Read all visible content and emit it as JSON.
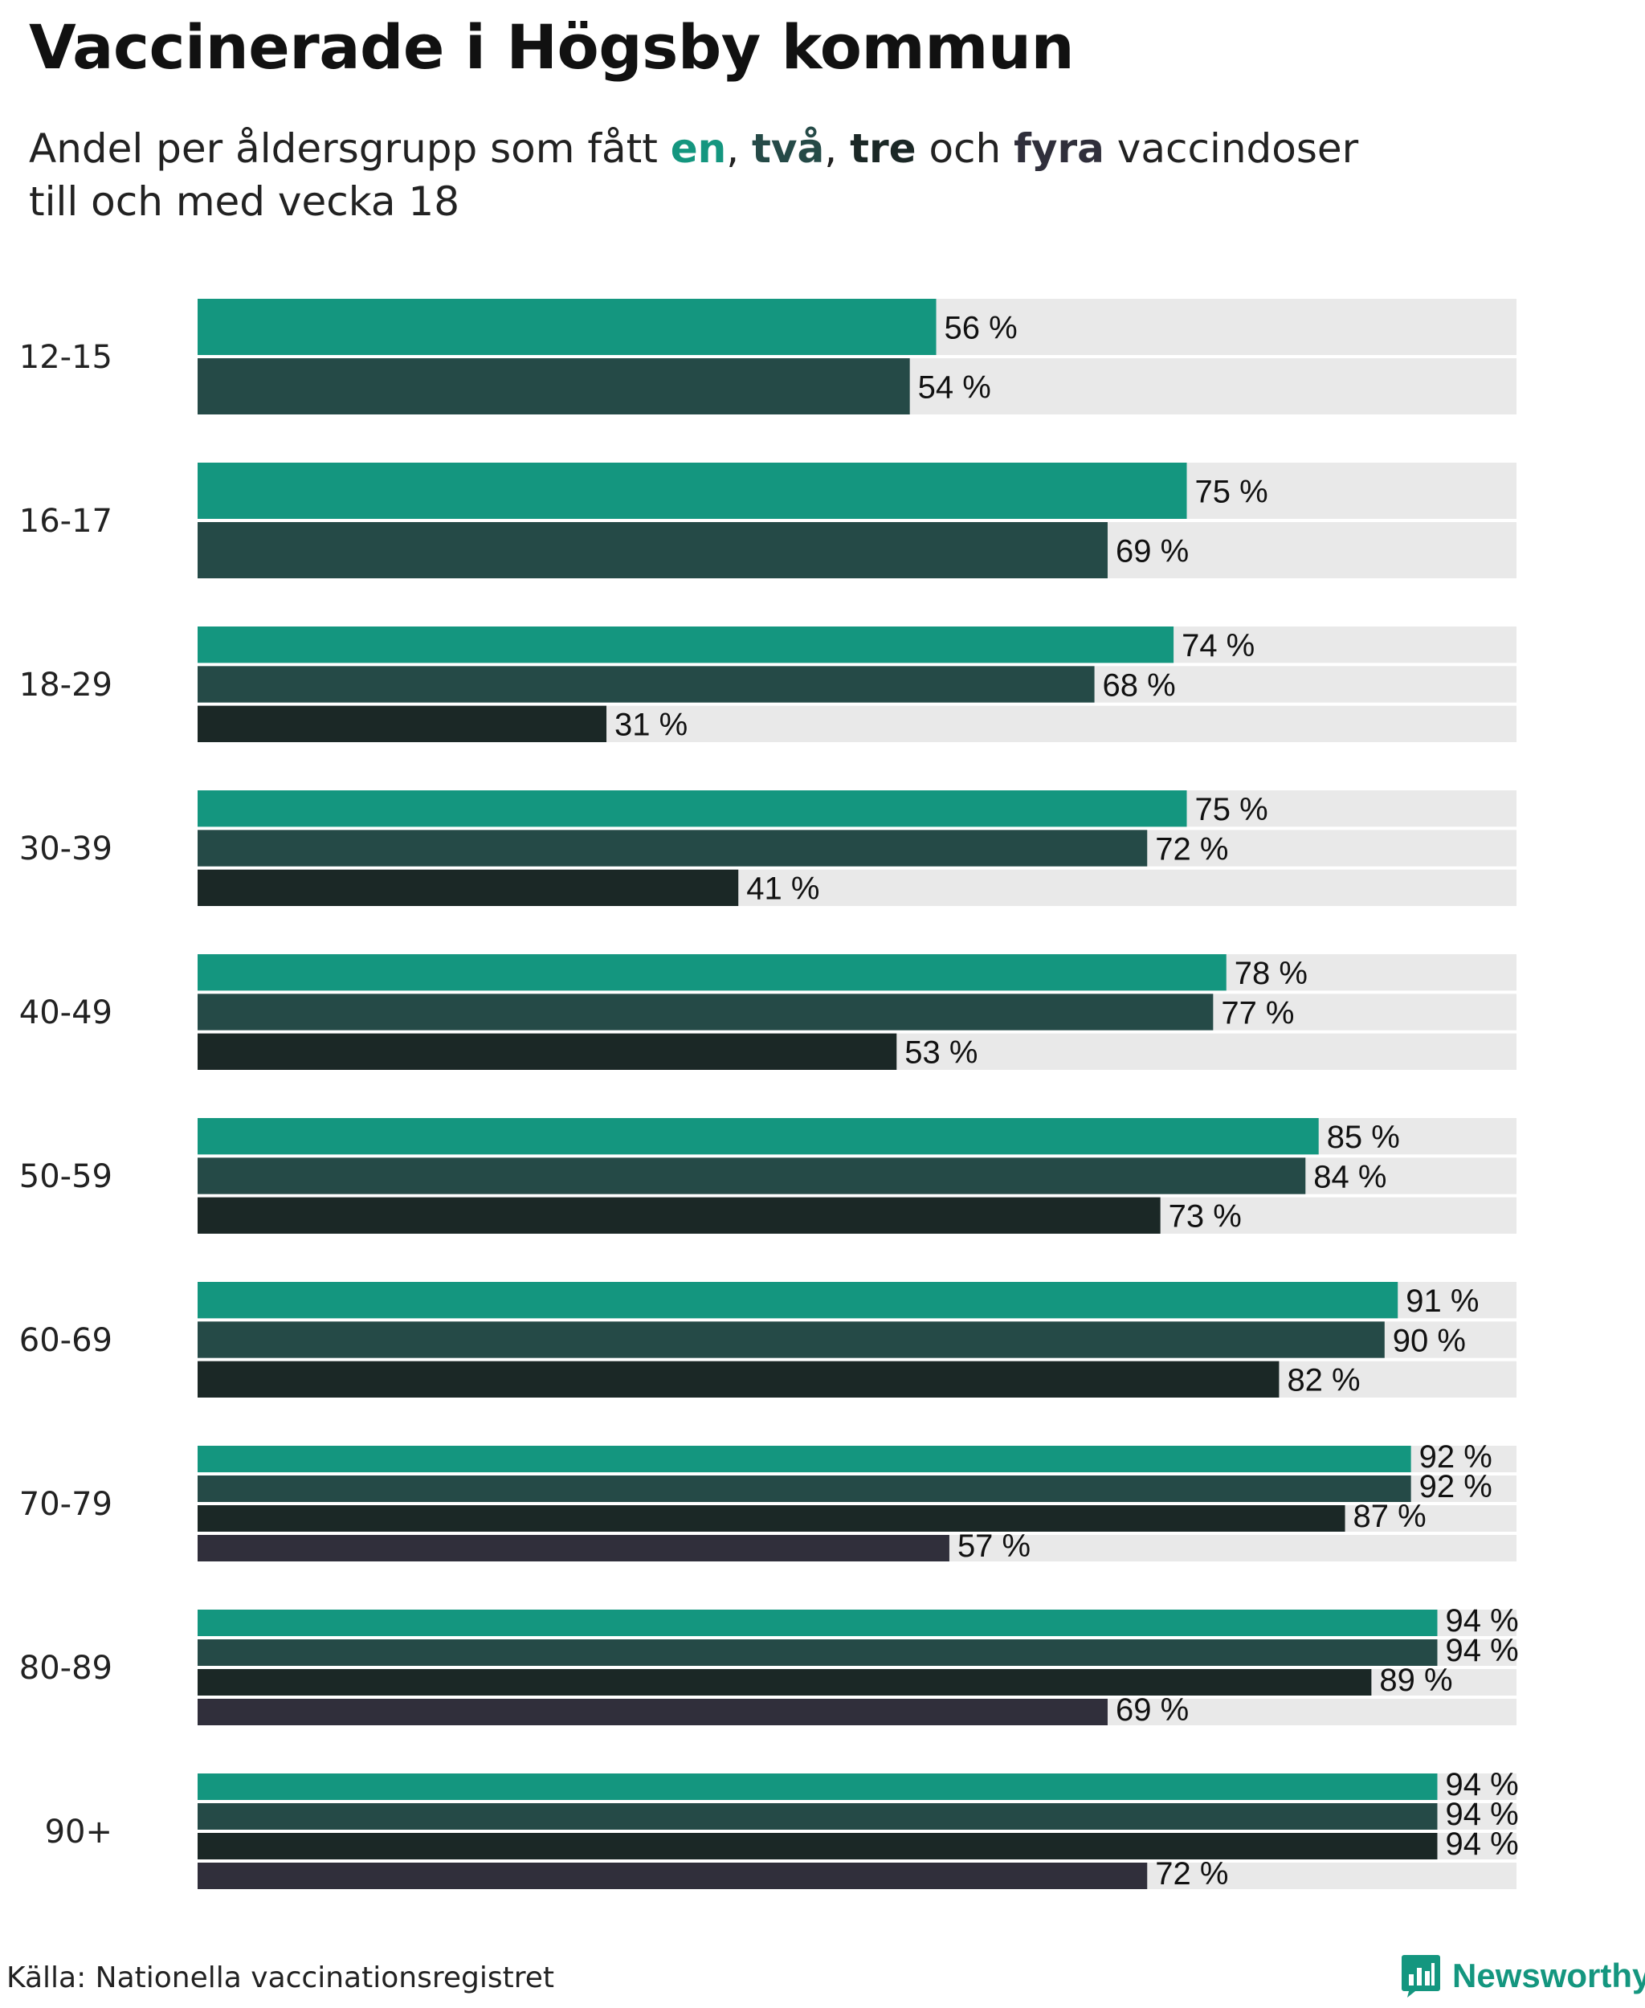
{
  "title": "Vaccinerade i Högsby kommun",
  "subtitle": {
    "before": "Andel per åldersgrupp som fått ",
    "dose1": "en",
    "sep1": ", ",
    "dose2": "två",
    "sep2": ", ",
    "dose3": "tre",
    "and": " och ",
    "dose4": "fyra",
    "after": " vaccindoser",
    "line2": "till och med vecka 18"
  },
  "source": "Källa: Nationella vaccinationsregistret",
  "brand": {
    "name": "Newsworthy",
    "logo_icon": "newsworthy-chart-logo-icon"
  },
  "colors": {
    "dose1": "#14967f",
    "dose2": "#254a47",
    "dose3": "#1b2826",
    "dose4": "#302f3b",
    "track": "#e9e9e9",
    "brand": "#14967f"
  },
  "chart_data": {
    "type": "bar",
    "orientation": "horizontal",
    "title": "Vaccinerade i Högsby kommun",
    "subtitle": "Andel per åldersgrupp som fått en, två, tre och fyra vaccindoser till och med vecka 18",
    "xlim": [
      0,
      100
    ],
    "unit": "%",
    "categories": [
      "12-15",
      "16-17",
      "18-29",
      "30-39",
      "40-49",
      "50-59",
      "60-69",
      "70-79",
      "80-89",
      "90+"
    ],
    "series": [
      {
        "name": "en",
        "color": "#14967f",
        "values": [
          56,
          75,
          74,
          75,
          78,
          85,
          91,
          92,
          94,
          94
        ]
      },
      {
        "name": "två",
        "color": "#254a47",
        "values": [
          54,
          69,
          68,
          72,
          77,
          84,
          90,
          92,
          94,
          94
        ]
      },
      {
        "name": "tre",
        "color": "#1b2826",
        "values": [
          null,
          null,
          31,
          41,
          53,
          73,
          82,
          87,
          89,
          94
        ]
      },
      {
        "name": "fyra",
        "color": "#302f3b",
        "values": [
          null,
          null,
          null,
          null,
          null,
          null,
          null,
          57,
          69,
          72
        ]
      }
    ],
    "value_label_suffix": " %",
    "source": "Källa: Nationella vaccinationsregistret"
  }
}
